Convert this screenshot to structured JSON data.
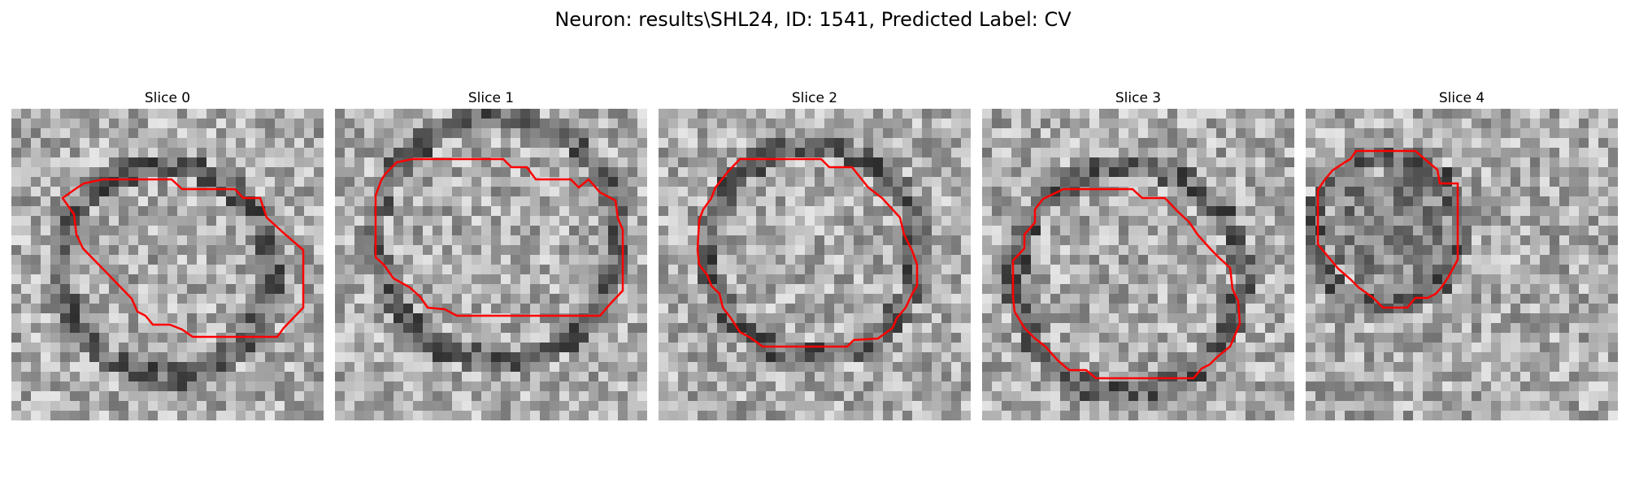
{
  "figure": {
    "title": "Neuron: results\\SHL24, ID: 1541, Predicted Label: CV"
  },
  "panels": [
    {
      "title": "Slice 0"
    },
    {
      "title": "Slice 1"
    },
    {
      "title": "Slice 2"
    },
    {
      "title": "Slice 3"
    },
    {
      "title": "Slice 4"
    }
  ],
  "colors": {
    "contour": "#ff0000"
  }
}
